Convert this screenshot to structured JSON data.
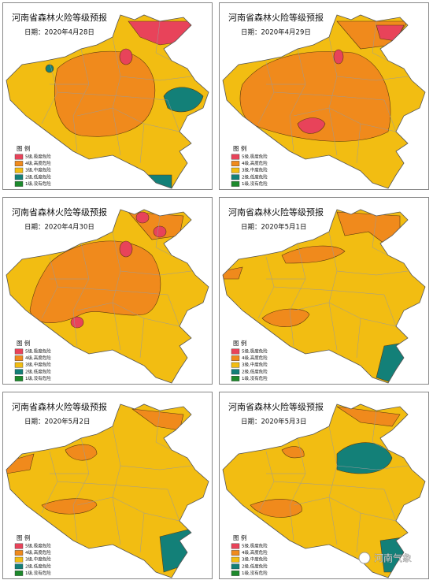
{
  "panels": [
    {
      "title": "河南省森林火险等级预报",
      "date": "日期：2020年4月28日"
    },
    {
      "title": "河南省森林火险等级预报",
      "date": "日期：2020年4月29日"
    },
    {
      "title": "河南省森林火险等级预报",
      "date": "日期：2020年4月30日"
    },
    {
      "title": "河南省森林火险等级预报",
      "date": "日期：2020年5月1日"
    },
    {
      "title": "河南省森林火险等级预报",
      "date": "日期：2020年5月2日"
    },
    {
      "title": "河南省森林火险等级预报",
      "date": "日期：2020年5月3日"
    }
  ],
  "legend": {
    "title": "图 例",
    "items": [
      {
        "label": "5级,极度危险",
        "color": "#e8435a"
      },
      {
        "label": "4级,高度危险",
        "color": "#f08a1c"
      },
      {
        "label": "3级,中度危险",
        "color": "#f2bd12"
      },
      {
        "label": "2级,低度危险",
        "color": "#138078"
      },
      {
        "label": "1级,没有危险",
        "color": "#1d8a2c"
      }
    ]
  },
  "watermark": "河南气象"
}
